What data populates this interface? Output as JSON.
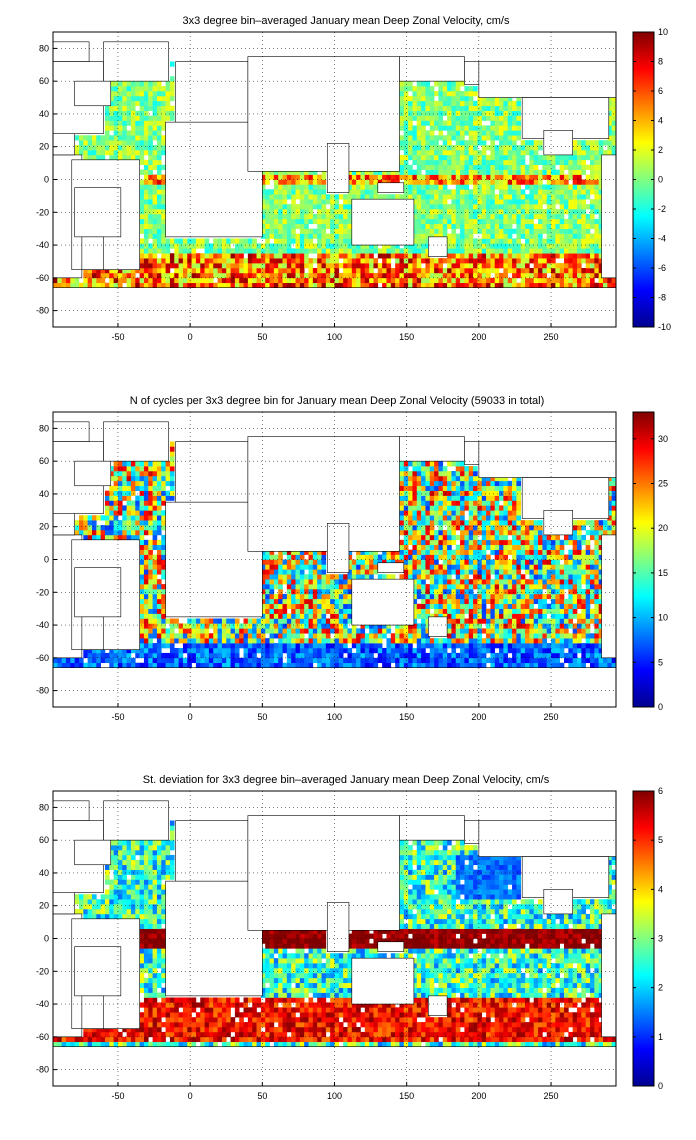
{
  "figure": {
    "type": "heatmap",
    "xticks": [
      "-50",
      "0",
      "50",
      "100",
      "150",
      "200",
      "250"
    ],
    "yticks": [
      "80",
      "60",
      "40",
      "20",
      "0",
      "-20",
      "-40",
      "-60",
      "-80"
    ]
  },
  "chart_data": [
    {
      "type": "heatmap",
      "title": "3x3 degree bin–averaged January mean Deep Zonal Velocity, cm/s",
      "xlim": [
        -95,
        295
      ],
      "ylim": [
        -90,
        90
      ],
      "grid": true,
      "colormap": "jet",
      "clim": [
        -10,
        10
      ],
      "colorbar_ticks": [
        "10",
        "8",
        "6",
        "4",
        "2",
        "0",
        "-2",
        "-4",
        "-6",
        "-8",
        "-10"
      ],
      "colorbar_tick_values": [
        10,
        8,
        6,
        4,
        2,
        0,
        -2,
        -4,
        -6,
        -8,
        -10
      ],
      "description_values": {
        "background_level": 0,
        "equatorial_band_value": 5,
        "southern_ocean_band_value": 6
      }
    },
    {
      "type": "heatmap",
      "title": "N of cycles per 3x3 degree bin for January mean Deep Zonal Velocity (59033 in total)",
      "xlim": [
        -95,
        295
      ],
      "ylim": [
        -90,
        90
      ],
      "grid": true,
      "colormap": "jet",
      "clim": [
        0,
        33
      ],
      "colorbar_ticks": [
        "30",
        "25",
        "20",
        "15",
        "10",
        "5",
        "0"
      ],
      "colorbar_tick_values": [
        30,
        25,
        20,
        15,
        10,
        5,
        0
      ],
      "description_values": {
        "background_level": 15,
        "southern_band_value": 3
      }
    },
    {
      "type": "heatmap",
      "title": "St. deviation for 3x3 degree bin–averaged January mean Deep Zonal Velocity, cm/s",
      "xlim": [
        -95,
        295
      ],
      "ylim": [
        -90,
        90
      ],
      "grid": true,
      "colormap": "jet",
      "clim": [
        0,
        6
      ],
      "colorbar_ticks": [
        "6",
        "5",
        "4",
        "3",
        "2",
        "1",
        "0"
      ],
      "colorbar_tick_values": [
        6,
        5,
        4,
        3,
        2,
        1,
        0
      ],
      "description_values": {
        "background_level": 2.5,
        "equatorial_band_value": 5.5,
        "southern_band_value": 6
      }
    }
  ]
}
